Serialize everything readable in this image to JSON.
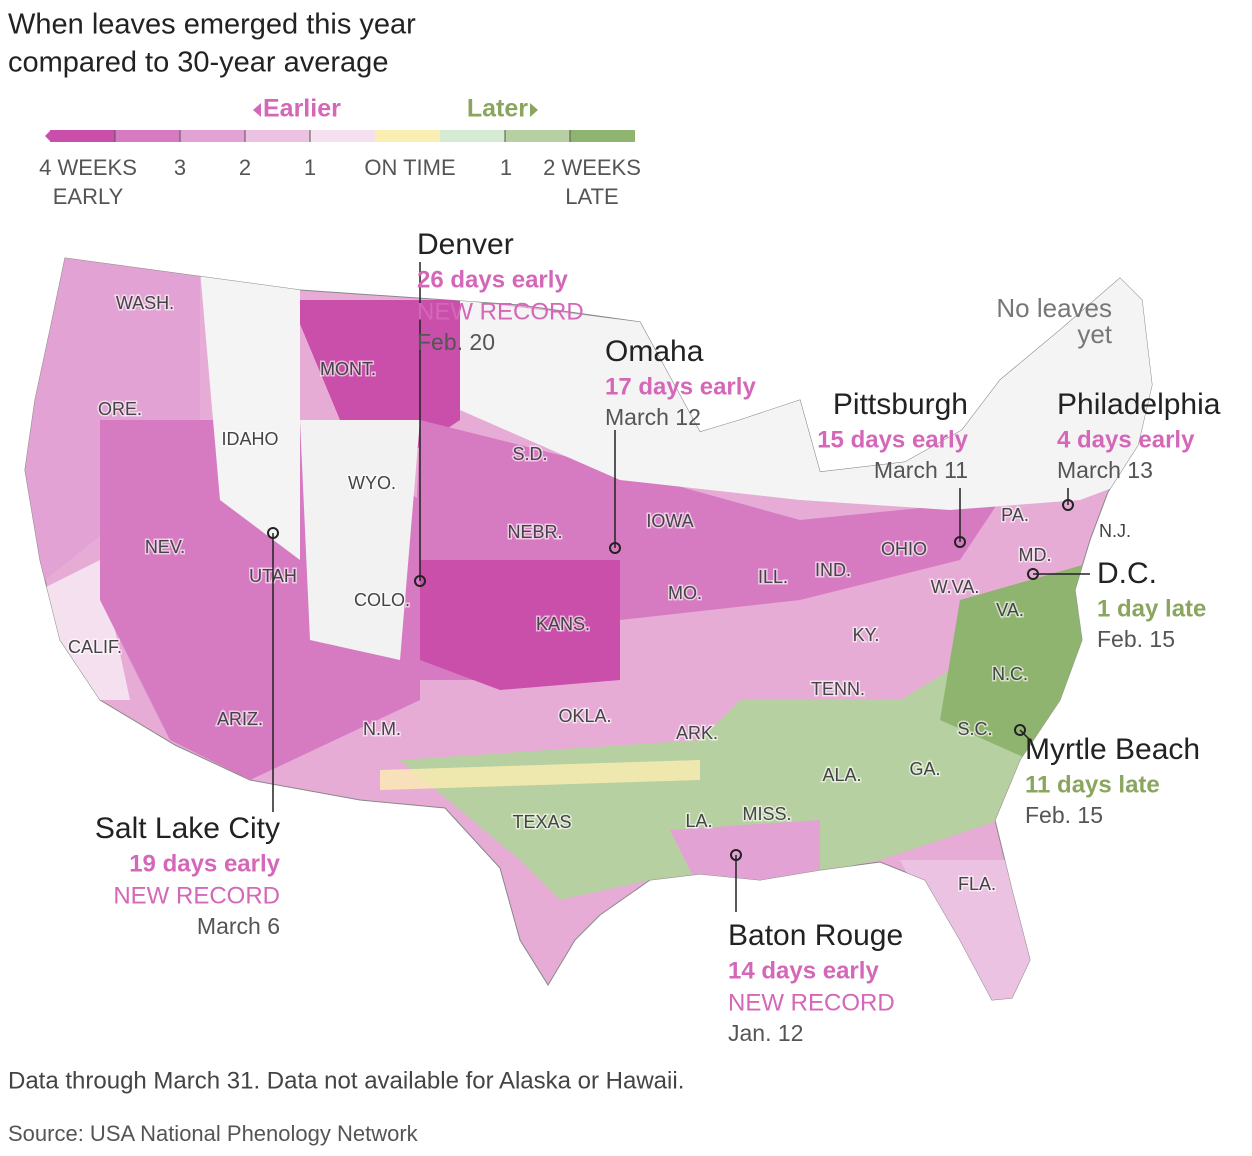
{
  "title_lines": [
    "When leaves emerged this year",
    "compared to 30-year average"
  ],
  "legend": {
    "earlier": "Earlier",
    "later": "Later",
    "earlier_color": "#d467b8",
    "later_color": "#8aa65e",
    "colors": [
      "#c94fab",
      "#d67bc2",
      "#e2a2d3",
      "#ecc2e2",
      "#f5e0ef",
      "#fbeeb3",
      "#d6ebd3",
      "#b7d0a1",
      "#8fb470"
    ],
    "labels": [
      {
        "lines": [
          "4 WEEKS",
          "EARLY"
        ]
      },
      {
        "lines": [
          "3"
        ]
      },
      {
        "lines": [
          "2"
        ]
      },
      {
        "lines": [
          "1"
        ]
      },
      {
        "lines": [
          "ON TIME"
        ]
      },
      {
        "lines": [
          "1"
        ]
      },
      {
        "lines": [
          "2 WEEKS",
          "LATE"
        ]
      }
    ]
  },
  "states": [
    "WASH.",
    "ORE.",
    "CALIF.",
    "NEV.",
    "IDAHO",
    "MONT.",
    "WYO.",
    "UTAH",
    "COLO.",
    "ARIZ.",
    "N.M.",
    "S.D.",
    "NEBR.",
    "KANS.",
    "OKLA.",
    "TEXAS",
    "IOWA",
    "MO.",
    "ARK.",
    "LA.",
    "MISS.",
    "ILL.",
    "IND.",
    "OHIO",
    "KY.",
    "TENN.",
    "ALA.",
    "GA.",
    "FLA.",
    "S.C.",
    "N.C.",
    "VA.",
    "W.VA.",
    "MD.",
    "PA.",
    "N.J."
  ],
  "no_leaves_lines": [
    "No leaves",
    "yet"
  ],
  "cities": [
    {
      "name": "Denver",
      "change": "26 days early",
      "record": "NEW RECORD",
      "date": "Feb. 20",
      "color": "#d467b8"
    },
    {
      "name": "Omaha",
      "change": "17 days early",
      "date": "March 12",
      "color": "#d467b8"
    },
    {
      "name": "Pittsburgh",
      "change": "15 days early",
      "date": "March 11",
      "color": "#d467b8"
    },
    {
      "name": "Philadelphia",
      "change": "4 days early",
      "date": "March 13",
      "color": "#d467b8"
    },
    {
      "name": "D.C.",
      "change": "1 day late",
      "date": "Feb. 15",
      "color": "#8aa65e"
    },
    {
      "name": "Myrtle Beach",
      "change": "11 days late",
      "date": "Feb. 15",
      "color": "#8aa65e"
    },
    {
      "name": "Salt Lake City",
      "change": "19 days early",
      "record": "NEW RECORD",
      "date": "March 6",
      "color": "#d467b8"
    },
    {
      "name": "Baton Rouge",
      "change": "14 days early",
      "record": "NEW RECORD",
      "date": "Jan. 12",
      "color": "#d467b8"
    }
  ],
  "footnote": "Data through March 31. Data not available for Alaska or Hawaii.",
  "source": "Source: USA National Phenology Network"
}
